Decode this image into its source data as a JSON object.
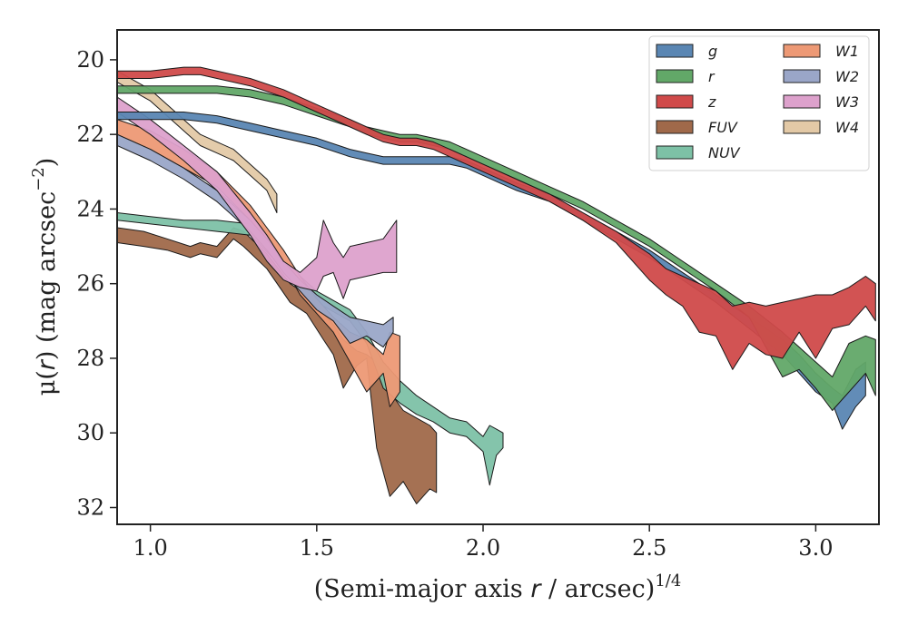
{
  "chart_data": {
    "type": "area",
    "title": "",
    "xlabel": "(Semi-major axis r / arcsec)",
    "xlabel_parts": [
      "(Semi-major axis ",
      "r",
      " / arcsec)",
      "1/4"
    ],
    "ylabel": "μ(r) (mag arcsec⁻²)",
    "ylabel_parts": [
      "μ(",
      "r",
      ") (mag arcsec",
      "−2",
      ")"
    ],
    "xlim": [
      0.9,
      3.19
    ],
    "ylim": [
      32.45,
      19.2
    ],
    "y_inverted": true,
    "xticks": [
      1.0,
      1.5,
      2.0,
      2.5,
      3.0
    ],
    "xtick_labels": [
      "1.0",
      "1.5",
      "2.0",
      "2.5",
      "3.0"
    ],
    "yticks": [
      20,
      22,
      24,
      26,
      28,
      30,
      32
    ],
    "ytick_labels": [
      "20",
      "22",
      "24",
      "26",
      "28",
      "30",
      "32"
    ],
    "grid": false,
    "legend_position": "top-right",
    "legend_columns": 2,
    "series": [
      {
        "name": "FUV",
        "color": "#a0694a",
        "x": [
          0.9,
          0.98,
          1.05,
          1.12,
          1.15,
          1.2,
          1.25,
          1.28,
          1.35,
          1.42,
          1.47,
          1.52,
          1.55,
          1.58,
          1.62,
          1.65,
          1.68,
          1.72,
          1.76,
          1.8,
          1.84,
          1.86
        ],
        "y_upper": [
          24.5,
          24.6,
          24.8,
          25.0,
          24.9,
          25.0,
          24.5,
          24.6,
          25.2,
          26.0,
          26.3,
          26.8,
          27.1,
          27.5,
          27.8,
          27.9,
          28.1,
          28.9,
          29.4,
          29.6,
          29.8,
          30.0
        ],
        "y_lower": [
          24.9,
          25.0,
          25.1,
          25.3,
          25.2,
          25.3,
          24.8,
          25.0,
          25.6,
          26.5,
          26.8,
          27.5,
          27.9,
          28.8,
          28.2,
          28.0,
          30.4,
          31.7,
          31.3,
          31.9,
          31.5,
          31.6
        ]
      },
      {
        "name": "NUV",
        "color": "#7dc1a6",
        "x": [
          0.9,
          1.0,
          1.1,
          1.2,
          1.3,
          1.4,
          1.5,
          1.6,
          1.65,
          1.7,
          1.75,
          1.8,
          1.85,
          1.9,
          1.95,
          2.0,
          2.02,
          2.04,
          2.06
        ],
        "y_upper": [
          24.1,
          24.2,
          24.3,
          24.3,
          24.4,
          25.4,
          26.2,
          26.7,
          27.3,
          28.1,
          28.6,
          29.0,
          29.3,
          29.6,
          29.7,
          30.1,
          29.8,
          29.9,
          30.0
        ],
        "y_lower": [
          24.3,
          24.4,
          24.5,
          24.6,
          24.7,
          25.6,
          26.5,
          27.0,
          27.6,
          28.8,
          29.2,
          29.5,
          29.7,
          30.0,
          30.1,
          30.5,
          31.4,
          30.6,
          30.4
        ]
      },
      {
        "name": "W1",
        "color": "#ed9975",
        "x": [
          0.9,
          1.0,
          1.1,
          1.2,
          1.3,
          1.35,
          1.4,
          1.45,
          1.5,
          1.55,
          1.6,
          1.65,
          1.7,
          1.72,
          1.75
        ],
        "y_upper": [
          21.6,
          21.9,
          22.4,
          23.0,
          23.9,
          24.5,
          25.1,
          25.8,
          26.4,
          26.9,
          27.3,
          27.5,
          27.9,
          27.3,
          27.4
        ],
        "y_lower": [
          22.0,
          22.4,
          22.9,
          23.4,
          24.3,
          24.9,
          25.5,
          26.3,
          26.8,
          27.3,
          28.1,
          28.9,
          28.4,
          29.3,
          28.9
        ]
      },
      {
        "name": "W2",
        "color": "#9aa6c8",
        "x": [
          0.9,
          1.0,
          1.1,
          1.2,
          1.3,
          1.35,
          1.4,
          1.45,
          1.5,
          1.55,
          1.6,
          1.65,
          1.7,
          1.73
        ],
        "y_upper": [
          22.0,
          22.4,
          22.9,
          23.5,
          24.3,
          24.8,
          25.4,
          25.9,
          26.3,
          26.6,
          26.9,
          27.0,
          27.1,
          26.9
        ],
        "y_lower": [
          22.3,
          22.7,
          23.2,
          23.8,
          24.6,
          25.1,
          25.7,
          26.2,
          26.7,
          27.0,
          27.6,
          27.4,
          27.7,
          27.3
        ]
      },
      {
        "name": "W3",
        "color": "#dda1cc",
        "x": [
          0.9,
          1.0,
          1.1,
          1.2,
          1.3,
          1.35,
          1.4,
          1.45,
          1.5,
          1.52,
          1.55,
          1.58,
          1.6,
          1.65,
          1.7,
          1.74
        ],
        "y_upper": [
          21.0,
          21.6,
          22.3,
          23.0,
          24.1,
          24.7,
          25.4,
          25.7,
          25.3,
          24.3,
          24.9,
          25.3,
          25.0,
          24.9,
          24.8,
          24.3
        ],
        "y_lower": [
          21.4,
          22.0,
          22.7,
          23.5,
          24.7,
          25.4,
          25.9,
          26.1,
          26.2,
          25.8,
          25.7,
          26.4,
          25.9,
          25.8,
          25.7,
          25.7
        ]
      },
      {
        "name": "W4",
        "color": "#e3c9a6",
        "x": [
          0.9,
          1.0,
          1.1,
          1.15,
          1.2,
          1.25,
          1.3,
          1.35,
          1.38
        ],
        "y_upper": [
          20.3,
          20.8,
          21.6,
          22.0,
          22.2,
          22.4,
          22.8,
          23.2,
          23.6
        ],
        "y_lower": [
          20.6,
          21.1,
          21.9,
          22.3,
          22.5,
          22.7,
          23.1,
          23.5,
          24.1
        ]
      },
      {
        "name": "g",
        "color": "#5a86b3",
        "x": [
          0.9,
          1.0,
          1.1,
          1.2,
          1.3,
          1.4,
          1.5,
          1.6,
          1.65,
          1.7,
          1.75,
          1.8,
          1.85,
          1.9,
          1.95,
          2.0,
          2.1,
          2.2,
          2.3,
          2.4,
          2.5,
          2.6,
          2.7,
          2.8,
          2.9,
          2.95,
          3.0,
          3.05,
          3.08,
          3.12,
          3.15
        ],
        "y_upper": [
          21.4,
          21.4,
          21.4,
          21.5,
          21.7,
          21.9,
          22.1,
          22.4,
          22.5,
          22.6,
          22.6,
          22.6,
          22.6,
          22.6,
          22.7,
          22.9,
          23.3,
          23.6,
          24.1,
          24.6,
          25.1,
          25.7,
          26.3,
          26.9,
          27.5,
          27.9,
          28.4,
          28.8,
          29.0,
          28.3,
          28.1
        ],
        "y_lower": [
          21.6,
          21.6,
          21.6,
          21.7,
          21.9,
          22.1,
          22.3,
          22.6,
          22.7,
          22.8,
          22.8,
          22.8,
          22.8,
          22.8,
          22.9,
          23.1,
          23.5,
          23.8,
          24.3,
          24.8,
          25.3,
          25.9,
          26.5,
          27.2,
          27.9,
          28.4,
          28.9,
          29.2,
          29.9,
          29.3,
          29.0
        ]
      },
      {
        "name": "r",
        "color": "#62a868",
        "x": [
          0.9,
          1.0,
          1.1,
          1.2,
          1.3,
          1.4,
          1.5,
          1.6,
          1.65,
          1.7,
          1.75,
          1.8,
          1.85,
          1.9,
          1.95,
          2.0,
          2.1,
          2.2,
          2.3,
          2.4,
          2.5,
          2.6,
          2.7,
          2.8,
          2.9,
          2.95,
          3.0,
          3.05,
          3.1,
          3.15,
          3.18
        ],
        "y_upper": [
          20.7,
          20.7,
          20.7,
          20.7,
          20.8,
          21.0,
          21.3,
          21.6,
          21.8,
          21.9,
          22.0,
          22.0,
          22.1,
          22.2,
          22.4,
          22.6,
          23.0,
          23.4,
          23.8,
          24.3,
          24.8,
          25.4,
          26.0,
          26.6,
          27.3,
          27.7,
          28.1,
          28.5,
          27.6,
          27.4,
          27.5
        ],
        "y_lower": [
          20.9,
          20.9,
          20.9,
          20.9,
          21.0,
          21.2,
          21.5,
          21.8,
          22.0,
          22.1,
          22.2,
          22.2,
          22.3,
          22.4,
          22.6,
          22.8,
          23.2,
          23.6,
          24.0,
          24.5,
          25.0,
          25.6,
          26.2,
          26.9,
          28.5,
          28.3,
          28.8,
          29.4,
          28.9,
          28.4,
          29.0
        ]
      },
      {
        "name": "z",
        "color": "#d04a4a",
        "x": [
          0.9,
          1.0,
          1.1,
          1.15,
          1.2,
          1.3,
          1.4,
          1.5,
          1.6,
          1.65,
          1.7,
          1.75,
          1.8,
          1.85,
          1.9,
          1.95,
          2.0,
          2.1,
          2.2,
          2.3,
          2.4,
          2.5,
          2.55,
          2.6,
          2.65,
          2.7,
          2.75,
          2.8,
          2.85,
          2.9,
          2.95,
          3.0,
          3.05,
          3.1,
          3.15,
          3.18
        ],
        "y_upper": [
          20.3,
          20.3,
          20.2,
          20.2,
          20.3,
          20.5,
          20.8,
          21.2,
          21.6,
          21.8,
          22.0,
          22.1,
          22.1,
          22.2,
          22.4,
          22.6,
          22.8,
          23.2,
          23.6,
          24.1,
          24.6,
          25.2,
          25.6,
          25.8,
          26.0,
          26.2,
          26.6,
          26.5,
          26.6,
          26.5,
          26.4,
          26.3,
          26.3,
          26.1,
          25.8,
          26.0
        ],
        "y_lower": [
          20.5,
          20.5,
          20.4,
          20.4,
          20.5,
          20.7,
          21.0,
          21.4,
          21.8,
          22.0,
          22.2,
          22.3,
          22.3,
          22.4,
          22.6,
          22.8,
          23.0,
          23.4,
          23.8,
          24.3,
          24.9,
          25.9,
          26.3,
          26.6,
          27.3,
          27.4,
          28.3,
          27.6,
          27.9,
          28.0,
          27.3,
          28.0,
          27.2,
          27.1,
          26.6,
          27.0
        ]
      }
    ],
    "legend_order": [
      "g",
      "r",
      "z",
      "FUV",
      "NUV",
      "W1",
      "W2",
      "W3",
      "W4"
    ]
  }
}
